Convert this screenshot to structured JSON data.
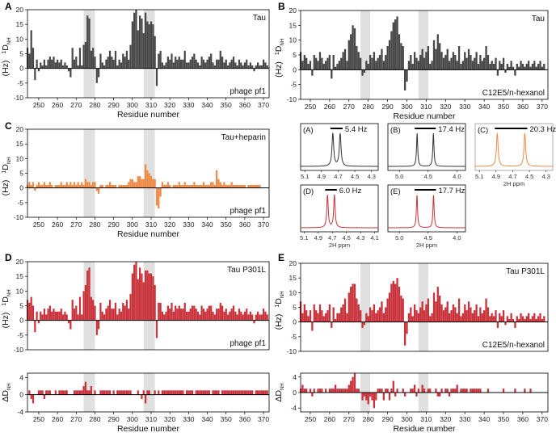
{
  "chart_data": [
    {
      "id": "A",
      "type": "bar",
      "panel_label": "A",
      "inset_top": "Tau",
      "inset_bottom": "phage pf1",
      "ylabel": "1DNH (Hz)",
      "xlabel": "Residue number",
      "xlim": [
        244,
        373
      ],
      "ylim": [
        -10,
        20
      ],
      "yticks": [
        -10,
        -5,
        0,
        5,
        10,
        15,
        20
      ],
      "xticks": [
        250,
        260,
        270,
        280,
        290,
        300,
        310,
        320,
        330,
        340,
        350,
        360,
        370
      ],
      "shaded": [
        [
          274,
          280
        ],
        [
          306,
          312
        ]
      ],
      "color": "#474747",
      "start_residue": 244,
      "values": [
        7,
        5,
        13,
        7,
        -4,
        3,
        -1,
        2,
        1,
        3,
        1,
        3,
        4,
        3,
        4,
        2,
        3,
        2,
        3,
        1,
        2,
        1,
        -1,
        -3,
        7,
        3,
        4,
        1,
        7,
        1,
        8,
        9,
        18,
        17,
        6,
        7,
        4,
        -5,
        -3,
        5,
        2,
        1,
        3,
        4,
        6,
        4,
        3,
        6,
        1,
        3,
        2,
        5,
        4,
        6,
        3,
        8,
        16,
        19,
        20,
        13,
        18,
        17,
        12,
        19,
        16,
        15,
        16,
        15,
        11,
        -6,
        5,
        6,
        2,
        1,
        2,
        4,
        3,
        5,
        2,
        4,
        3,
        4,
        3,
        3,
        6,
        2,
        2,
        3,
        4,
        5,
        3,
        2,
        1,
        4,
        3,
        2,
        3,
        4,
        5,
        2,
        1,
        3,
        3,
        6,
        4,
        2,
        3,
        1,
        2,
        3,
        4,
        2,
        1,
        3,
        2,
        1,
        2,
        3,
        1,
        2,
        1,
        -1,
        1,
        2,
        1,
        1,
        3,
        2,
        1
      ]
    },
    {
      "id": "B",
      "type": "bar",
      "panel_label": "B",
      "inset_top": "Tau",
      "inset_bottom": "C12E5/n-hexanol",
      "ylabel": "1DNH (Hz)",
      "xlabel": "Residue number",
      "xlim": [
        245,
        373
      ],
      "ylim": [
        -10,
        20
      ],
      "yticks": [
        -10,
        -5,
        0,
        5,
        10,
        15,
        20
      ],
      "xticks": [
        250,
        260,
        270,
        280,
        290,
        300,
        310,
        320,
        330,
        340,
        350,
        360,
        370
      ],
      "shaded": [
        [
          276,
          281
        ],
        [
          306,
          311
        ]
      ],
      "color": "#474747",
      "start_residue": 245,
      "values": [
        6,
        3,
        5,
        4,
        2,
        3,
        -2,
        5,
        4,
        3,
        6,
        4,
        2,
        3,
        4,
        5,
        -3,
        5,
        1,
        2,
        3,
        4,
        6,
        7,
        3,
        10,
        12,
        15,
        14,
        8,
        6,
        4,
        -2,
        -1,
        3,
        2,
        5,
        4,
        6,
        3,
        4,
        5,
        7,
        3,
        5,
        8,
        10,
        13,
        16,
        17,
        18,
        12,
        9,
        8,
        -7,
        -4,
        3,
        5,
        2,
        6,
        4,
        3,
        5,
        7,
        4,
        6,
        8,
        2,
        3,
        10,
        7,
        12,
        9,
        6,
        4,
        5,
        7,
        3,
        4,
        6,
        5,
        3,
        8,
        2,
        3,
        6,
        4,
        7,
        5,
        3,
        4,
        6,
        2,
        5,
        3,
        4,
        8,
        5,
        2,
        3,
        2,
        4,
        -2,
        3,
        2,
        4,
        -1,
        2,
        1,
        3,
        1,
        -2,
        2,
        1,
        3,
        2,
        1,
        2,
        3,
        1,
        2,
        3,
        1,
        2,
        3,
        1,
        2
      ]
    },
    {
      "id": "C",
      "type": "bar",
      "panel_label": "C",
      "inset_top": "Tau+heparin",
      "inset_bottom": "phage pf1",
      "ylabel": "1DNH (Hz)",
      "xlabel": "Residue number",
      "xlim": [
        244,
        373
      ],
      "ylim": [
        -10,
        20
      ],
      "yticks": [
        -10,
        -5,
        0,
        5,
        10,
        15,
        20
      ],
      "xticks": [
        250,
        260,
        270,
        280,
        290,
        300,
        310,
        320,
        330,
        340,
        350,
        360,
        370
      ],
      "shaded": [
        [
          274,
          280
        ],
        [
          306,
          312
        ]
      ],
      "color": "#ef8a46",
      "start_residue": 244,
      "values": [
        1,
        2,
        1,
        2,
        -1,
        1,
        2,
        1,
        1,
        2,
        1,
        1,
        2,
        1,
        0,
        1,
        1,
        1,
        2,
        1,
        1,
        2,
        1,
        2,
        1,
        2,
        1,
        2,
        1,
        2,
        1,
        3,
        2,
        2,
        1,
        2,
        2,
        -1,
        -2,
        1,
        1,
        0,
        1,
        1,
        2,
        1,
        1,
        1,
        0,
        1,
        1,
        1,
        1,
        1,
        2,
        3,
        3,
        2,
        2,
        4,
        4,
        3,
        3,
        8,
        6,
        5,
        4,
        3,
        3,
        -6,
        -7,
        -3,
        2,
        1,
        1,
        2,
        1,
        0,
        1,
        1,
        1,
        2,
        1,
        1,
        2,
        1,
        1,
        1,
        1,
        2,
        1,
        1,
        1,
        1,
        2,
        1,
        1,
        1,
        2,
        2,
        1,
        6,
        3,
        2,
        1,
        2,
        1,
        1,
        1,
        2,
        1,
        1,
        1,
        1,
        1,
        1,
        1,
        0,
        1,
        1,
        1,
        1,
        1,
        1,
        1
      ]
    },
    {
      "id": "D",
      "type": "bar",
      "panel_label": "D",
      "inset_top": "Tau P301L",
      "inset_bottom": "phage pf1",
      "ylabel": "1DNH (Hz)",
      "xlabel": "",
      "xlim": [
        244,
        373
      ],
      "ylim": [
        -10,
        20
      ],
      "yticks": [
        -10,
        -5,
        0,
        5,
        10,
        15,
        20
      ],
      "xticks": [],
      "shaded": [
        [
          274,
          280
        ],
        [
          306,
          312
        ]
      ],
      "color": "#c9323a",
      "start_residue": 244,
      "values": [
        7,
        6,
        8,
        5,
        -4,
        3,
        -1,
        3,
        2,
        4,
        2,
        4,
        5,
        3,
        4,
        3,
        3,
        3,
        4,
        2,
        3,
        2,
        -1,
        -3,
        7,
        4,
        5,
        2,
        8,
        2,
        10,
        12,
        17,
        18,
        8,
        7,
        5,
        -5,
        -3,
        6,
        3,
        2,
        4,
        5,
        7,
        4,
        4,
        6,
        2,
        4,
        3,
        6,
        5,
        7,
        4,
        9,
        16,
        19,
        20,
        14,
        18,
        16,
        13,
        17,
        17,
        16,
        16,
        15,
        12,
        -6,
        6,
        6,
        3,
        2,
        3,
        5,
        4,
        6,
        3,
        5,
        4,
        5,
        4,
        4,
        6,
        3,
        3,
        4,
        5,
        5,
        4,
        3,
        2,
        5,
        4,
        3,
        4,
        5,
        5,
        3,
        2,
        4,
        4,
        6,
        5,
        3,
        4,
        2,
        3,
        4,
        5,
        3,
        2,
        4,
        3,
        2,
        3,
        4,
        2,
        3,
        2,
        -1,
        2,
        3,
        2,
        2,
        4,
        3,
        2
      ]
    },
    {
      "id": "D2",
      "type": "bar",
      "panel_label": "",
      "inset_top": "",
      "inset_bottom": "",
      "ylabel": "ΔDNH",
      "xlabel": "Residue number",
      "xlim": [
        244,
        373
      ],
      "ylim": [
        -4,
        5
      ],
      "yticks": [
        -4,
        0,
        4
      ],
      "xticks": [
        250,
        260,
        270,
        280,
        290,
        300,
        310,
        320,
        330,
        340,
        350,
        360,
        370
      ],
      "shaded": [
        [
          274,
          280
        ],
        [
          306,
          312
        ]
      ],
      "color": "#c9323a",
      "start_residue": 244,
      "values": [
        0,
        1,
        -1,
        -2,
        0,
        0,
        1,
        1,
        1,
        -1,
        1,
        1,
        1,
        0,
        0,
        1,
        0,
        1,
        1,
        1,
        1,
        1,
        0,
        0,
        0,
        1,
        1,
        1,
        1,
        1,
        2,
        3,
        1,
        1,
        2,
        0,
        1,
        0,
        0,
        1,
        1,
        1,
        1,
        1,
        1,
        0,
        1,
        0,
        1,
        1,
        1,
        1,
        1,
        1,
        1,
        1,
        0,
        0,
        0,
        1,
        0,
        -1,
        1,
        -2,
        1,
        1,
        0,
        0,
        1,
        0,
        1,
        0,
        1,
        1,
        1,
        1,
        1,
        1,
        1,
        1,
        1,
        1,
        1,
        1,
        0,
        1,
        1,
        1,
        1,
        0,
        1,
        1,
        1,
        1,
        1,
        1,
        1,
        1,
        0,
        1,
        1,
        1,
        1,
        0,
        1,
        1,
        1,
        1,
        1,
        1,
        1,
        1,
        1,
        1,
        1,
        1,
        1,
        1,
        1,
        1,
        1,
        0,
        1,
        1,
        1,
        1,
        1,
        1,
        1
      ]
    },
    {
      "id": "E",
      "type": "bar",
      "panel_label": "E",
      "inset_top": "Tau P301L",
      "inset_bottom": "C12E5/n-hexanol",
      "ylabel": "1DNH (Hz)",
      "xlabel": "",
      "xlim": [
        245,
        373
      ],
      "ylim": [
        -10,
        20
      ],
      "yticks": [
        -10,
        -5,
        0,
        5,
        10,
        15,
        20
      ],
      "xticks": [],
      "shaded": [
        [
          276,
          281
        ],
        [
          306,
          311
        ]
      ],
      "color": "#c9323a",
      "start_residue": 245,
      "values": [
        7,
        3,
        6,
        4,
        2,
        4,
        -3,
        6,
        4,
        3,
        6,
        4,
        2,
        3,
        4,
        6,
        -2,
        5,
        1,
        3,
        3,
        5,
        6,
        8,
        3,
        10,
        12,
        13,
        13,
        8,
        6,
        4,
        -2,
        -1,
        3,
        2,
        5,
        4,
        6,
        3,
        4,
        5,
        7,
        3,
        5,
        8,
        10,
        13,
        14,
        13,
        15,
        12,
        9,
        8,
        -8,
        -4,
        3,
        5,
        2,
        6,
        4,
        3,
        5,
        7,
        4,
        6,
        8,
        2,
        3,
        10,
        7,
        12,
        9,
        6,
        4,
        5,
        7,
        3,
        4,
        6,
        5,
        3,
        8,
        2,
        3,
        6,
        4,
        7,
        5,
        3,
        4,
        6,
        2,
        5,
        3,
        4,
        8,
        5,
        2,
        3,
        2,
        4,
        -2,
        3,
        2,
        4,
        -1,
        2,
        1,
        3,
        1,
        -2,
        2,
        1,
        3,
        2,
        1,
        2,
        3,
        1,
        2,
        3,
        1,
        2,
        3,
        1,
        2
      ]
    },
    {
      "id": "E2",
      "type": "bar",
      "panel_label": "",
      "inset_top": "",
      "inset_bottom": "",
      "ylabel": "ΔDNH",
      "xlabel": "Residue number",
      "xlim": [
        245,
        373
      ],
      "ylim": [
        -5,
        5
      ],
      "yticks": [
        -4,
        0,
        4
      ],
      "xticks": [
        250,
        260,
        270,
        280,
        290,
        300,
        310,
        320,
        330,
        340,
        350,
        360,
        370
      ],
      "shaded": [
        [
          276,
          281
        ],
        [
          306,
          311
        ]
      ],
      "color": "#c9323a",
      "start_residue": 245,
      "values": [
        1,
        2,
        1,
        1,
        0,
        1,
        -1,
        1,
        0,
        1,
        1,
        1,
        0,
        1,
        0,
        1,
        1,
        1,
        2,
        1,
        1,
        1,
        1,
        1,
        1,
        2,
        3,
        4,
        5,
        1,
        1,
        0,
        -2,
        -1,
        -2,
        -3,
        -1,
        -2,
        -4,
        -2,
        1,
        1,
        1,
        -2,
        1,
        1,
        -2,
        1,
        3,
        -1,
        1,
        0,
        0,
        1,
        -1,
        0,
        0,
        1,
        1,
        2,
        -1,
        1,
        0,
        2,
        1,
        0,
        1,
        1,
        0,
        0,
        1,
        -1,
        -1,
        1,
        0,
        1,
        1,
        -1,
        1,
        1,
        1,
        2,
        0,
        1,
        1,
        1,
        1,
        0,
        1,
        1,
        1,
        1,
        1,
        1,
        0,
        0,
        0,
        1,
        0,
        0,
        0,
        0,
        0,
        0,
        0,
        1,
        0,
        0,
        0,
        0,
        0,
        1,
        0,
        0,
        0,
        0,
        1,
        0,
        0,
        1,
        0,
        0,
        0,
        0,
        0,
        0,
        0,
        0,
        0
      ]
    }
  ],
  "spectra": [
    {
      "label": "(A)",
      "value_label": "5.4 Hz",
      "split": 5.4,
      "center": 4.72,
      "xlim": [
        5.15,
        4.22
      ],
      "ticks": [
        5.1,
        4.9,
        4.7,
        4.5,
        4.3
      ],
      "xlabel": "",
      "color": "#333333"
    },
    {
      "label": "(B)",
      "value_label": "17.4 Hz",
      "split": 17.4,
      "center": 4.55,
      "xlim": [
        5.2,
        3.85
      ],
      "ticks": [
        5.0,
        4.5,
        4.0
      ],
      "xlabel": "",
      "color": "#333333"
    },
    {
      "label": "(C)",
      "value_label": "20.3 Hz",
      "split": 20.3,
      "center": 4.72,
      "xlim": [
        5.15,
        4.22
      ],
      "ticks": [
        5.1,
        4.9,
        4.7,
        4.5,
        4.3
      ],
      "xlabel": "2H ppm",
      "color": "#ef8a46"
    },
    {
      "label": "(D)",
      "value_label": "6.0 Hz",
      "split": 6.0,
      "center": 4.72,
      "xlim": [
        5.15,
        4.05
      ],
      "ticks": [
        5.1,
        4.9,
        4.7,
        4.5,
        4.3,
        4.1
      ],
      "xlabel": "2H ppm",
      "color": "#c9323a"
    },
    {
      "label": "(E)",
      "value_label": "17.7 Hz",
      "split": 17.7,
      "center": 4.55,
      "xlim": [
        5.2,
        3.85
      ],
      "ticks": [
        5.0,
        4.5,
        4.0
      ],
      "xlabel": "2H ppm",
      "color": "#c9323a"
    }
  ]
}
